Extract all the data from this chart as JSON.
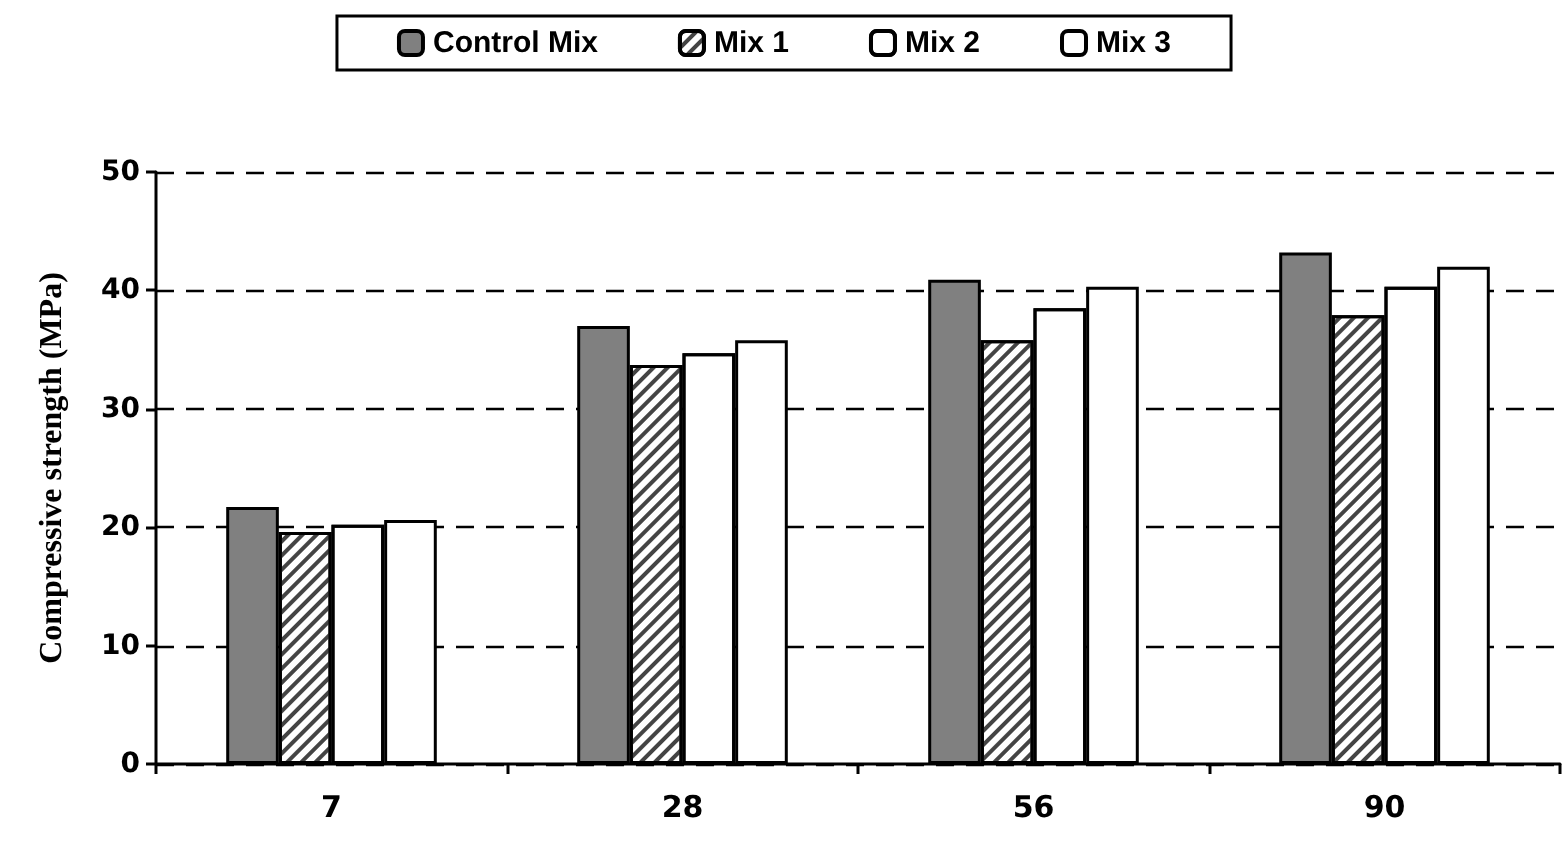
{
  "chart_data": {
    "type": "bar",
    "ylabel": "Compressive strength (MPa)",
    "categories": [
      "7",
      "28",
      "56",
      "90"
    ],
    "series": [
      {
        "name": "Control Mix",
        "color": "#808080",
        "values": [
          21.7,
          37.0,
          40.9,
          43.2
        ]
      },
      {
        "name": "Mix 1",
        "color": "#ffffff",
        "values": [
          19.6,
          33.7,
          35.8,
          37.9
        ]
      },
      {
        "name": "Mix 2",
        "color": "#ffffff",
        "values": [
          20.2,
          34.7,
          38.5,
          40.3
        ]
      },
      {
        "name": "Mix 3",
        "color": "#ffffff",
        "values": [
          20.6,
          35.8,
          40.3,
          42.0
        ]
      }
    ],
    "ylim": [
      0,
      50
    ],
    "yticks": [
      0,
      10,
      20,
      30,
      40,
      50
    ],
    "grid": "y",
    "legend": "top"
  }
}
